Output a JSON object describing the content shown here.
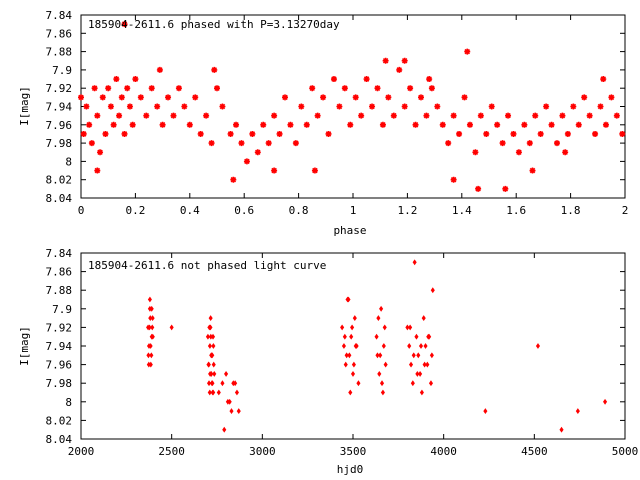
{
  "colors": {
    "points": "#ff0000",
    "axes": "#000000",
    "background": "#ffffff"
  },
  "chart_data": [
    {
      "type": "scatter",
      "title": "185904-2611.6 phased with P=3.13270day",
      "xlabel": "phase",
      "ylabel": "I[mag]",
      "xlim": [
        0,
        2
      ],
      "ylim": [
        7.84,
        8.04
      ],
      "y_inverted": true,
      "grid": false,
      "marker": "asterisk",
      "x_ticks": [
        "0",
        "0.2",
        "0.4",
        "0.6",
        "0.8",
        "1",
        "1.2",
        "1.4",
        "1.6",
        "1.8",
        "2"
      ],
      "y_ticks": [
        "7.84",
        "7.86",
        "7.88",
        "7.9",
        "7.92",
        "7.94",
        "7.96",
        "7.98",
        "8",
        "8.02",
        "8.04"
      ],
      "x": [
        0.0,
        0.01,
        0.02,
        0.03,
        0.04,
        0.05,
        0.06,
        0.07,
        0.08,
        0.09,
        0.1,
        0.11,
        0.12,
        0.13,
        0.14,
        0.15,
        0.16,
        0.17,
        0.18,
        0.19,
        0.2,
        0.22,
        0.24,
        0.26,
        0.28,
        0.3,
        0.32,
        0.34,
        0.36,
        0.38,
        0.4,
        0.42,
        0.44,
        0.46,
        0.48,
        0.5,
        0.52,
        0.55,
        0.57,
        0.59,
        0.61,
        0.63,
        0.65,
        0.67,
        0.69,
        0.71,
        0.73,
        0.75,
        0.77,
        0.79,
        0.81,
        0.83,
        0.85,
        0.87,
        0.89,
        0.91,
        0.93,
        0.95,
        0.97,
        0.99,
        1.01,
        1.03,
        1.05,
        1.07,
        1.09,
        1.11,
        1.13,
        1.15,
        1.17,
        1.19,
        1.21,
        1.23,
        1.25,
        1.27,
        1.29,
        1.31,
        1.33,
        1.35,
        1.37,
        1.39,
        1.41,
        1.43,
        1.45,
        1.47,
        1.49,
        1.51,
        1.53,
        1.55,
        1.57,
        1.59,
        1.61,
        1.63,
        1.65,
        1.67,
        1.69,
        1.71,
        1.73,
        1.75,
        1.77,
        1.79,
        1.81,
        1.83,
        1.85,
        1.87,
        1.89,
        1.91,
        1.93,
        1.95,
        1.97,
        1.99,
        0.06,
        0.16,
        0.29,
        0.49,
        0.56,
        0.71,
        0.86,
        1.12,
        1.19,
        1.28,
        1.37,
        1.42,
        1.46,
        1.56,
        1.66,
        1.78,
        1.92
      ],
      "y": [
        7.93,
        7.97,
        7.94,
        7.96,
        7.98,
        7.92,
        7.95,
        7.99,
        7.93,
        7.97,
        7.92,
        7.94,
        7.96,
        7.91,
        7.95,
        7.93,
        7.97,
        7.92,
        7.94,
        7.96,
        7.91,
        7.93,
        7.95,
        7.92,
        7.94,
        7.96,
        7.93,
        7.95,
        7.92,
        7.94,
        7.96,
        7.93,
        7.97,
        7.95,
        7.98,
        7.92,
        7.94,
        7.97,
        7.96,
        7.98,
        8.0,
        7.97,
        7.99,
        7.96,
        7.98,
        7.95,
        7.97,
        7.93,
        7.96,
        7.98,
        7.94,
        7.96,
        7.92,
        7.95,
        7.93,
        7.97,
        7.91,
        7.94,
        7.92,
        7.96,
        7.93,
        7.95,
        7.91,
        7.94,
        7.92,
        7.96,
        7.93,
        7.95,
        7.9,
        7.94,
        7.92,
        7.96,
        7.93,
        7.95,
        7.92,
        7.94,
        7.96,
        7.98,
        7.95,
        7.97,
        7.93,
        7.96,
        7.99,
        7.95,
        7.97,
        7.94,
        7.96,
        7.98,
        7.95,
        7.97,
        7.99,
        7.96,
        7.98,
        7.95,
        7.97,
        7.94,
        7.96,
        7.98,
        7.95,
        7.97,
        7.94,
        7.96,
        7.93,
        7.95,
        7.97,
        7.94,
        7.96,
        7.93,
        7.95,
        7.97,
        8.01,
        7.85,
        7.9,
        7.9,
        8.02,
        8.01,
        8.01,
        7.89,
        7.89,
        7.91,
        8.02,
        7.88,
        8.03,
        8.03,
        8.01,
        7.99,
        7.91
      ]
    },
    {
      "type": "scatter",
      "title": "185904-2611.6 not phased light curve",
      "xlabel": "hjd0",
      "ylabel": "I[mag]",
      "xlim": [
        2000,
        5000
      ],
      "ylim": [
        7.84,
        8.04
      ],
      "y_inverted": true,
      "grid": false,
      "marker": "diamond",
      "x_ticks": [
        "2000",
        "2500",
        "3000",
        "3500",
        "4000",
        "4500",
        "5000"
      ],
      "y_ticks": [
        "7.84",
        "7.86",
        "7.88",
        "7.9",
        "7.92",
        "7.94",
        "7.96",
        "7.98",
        "8",
        "8.02",
        "8.04"
      ],
      "x": [
        2370,
        2375,
        2380,
        2385,
        2390,
        2395,
        2372,
        2378,
        2384,
        2390,
        2396,
        2374,
        2382,
        2388,
        2393,
        2380,
        2500,
        2700,
        2705,
        2710,
        2715,
        2720,
        2725,
        2730,
        2735,
        2708,
        2712,
        2718,
        2722,
        2728,
        2703,
        2714,
        2726,
        2732,
        2711,
        2719,
        2706,
        2724,
        2716,
        2729,
        2760,
        2780,
        2800,
        2820,
        2840,
        2860,
        2870,
        2790,
        2810,
        2830,
        2850,
        3440,
        3450,
        3460,
        3470,
        3480,
        3490,
        3500,
        3510,
        3520,
        3530,
        3455,
        3465,
        3475,
        3485,
        3495,
        3505,
        3515,
        3630,
        3640,
        3650,
        3660,
        3670,
        3680,
        3645,
        3655,
        3665,
        3675,
        3635,
        3800,
        3810,
        3820,
        3830,
        3840,
        3850,
        3860,
        3870,
        3880,
        3890,
        3900,
        3910,
        3920,
        3930,
        3940,
        3815,
        3835,
        3855,
        3875,
        3895,
        3915,
        3935,
        4230,
        4520,
        4650,
        4740,
        4890
      ],
      "y": [
        7.92,
        7.94,
        7.9,
        7.96,
        7.93,
        7.91,
        7.95,
        7.92,
        7.94,
        7.9,
        7.93,
        7.96,
        7.91,
        7.95,
        7.92,
        7.89,
        7.92,
        7.93,
        7.96,
        7.99,
        7.91,
        7.95,
        7.98,
        7.94,
        7.97,
        7.92,
        7.97,
        7.95,
        7.98,
        7.93,
        7.96,
        7.92,
        7.99,
        7.96,
        7.94,
        7.97,
        7.98,
        7.95,
        7.93,
        7.99,
        7.99,
        7.98,
        7.97,
        8.0,
        7.98,
        7.99,
        8.01,
        8.03,
        8.0,
        8.01,
        7.98,
        7.92,
        7.94,
        7.96,
        7.89,
        7.95,
        7.93,
        7.97,
        7.91,
        7.94,
        7.98,
        7.93,
        7.95,
        7.89,
        7.99,
        7.92,
        7.96,
        7.94,
        7.93,
        7.91,
        7.95,
        7.98,
        7.94,
        7.96,
        7.97,
        7.9,
        7.99,
        7.92,
        7.95,
        7.92,
        7.94,
        7.96,
        7.98,
        7.85,
        7.93,
        7.95,
        7.97,
        7.99,
        7.91,
        7.94,
        7.96,
        7.93,
        7.98,
        7.88,
        7.92,
        7.95,
        7.97,
        7.94,
        7.96,
        7.93,
        7.95,
        8.01,
        7.94,
        8.03,
        8.01,
        8.0
      ]
    }
  ]
}
